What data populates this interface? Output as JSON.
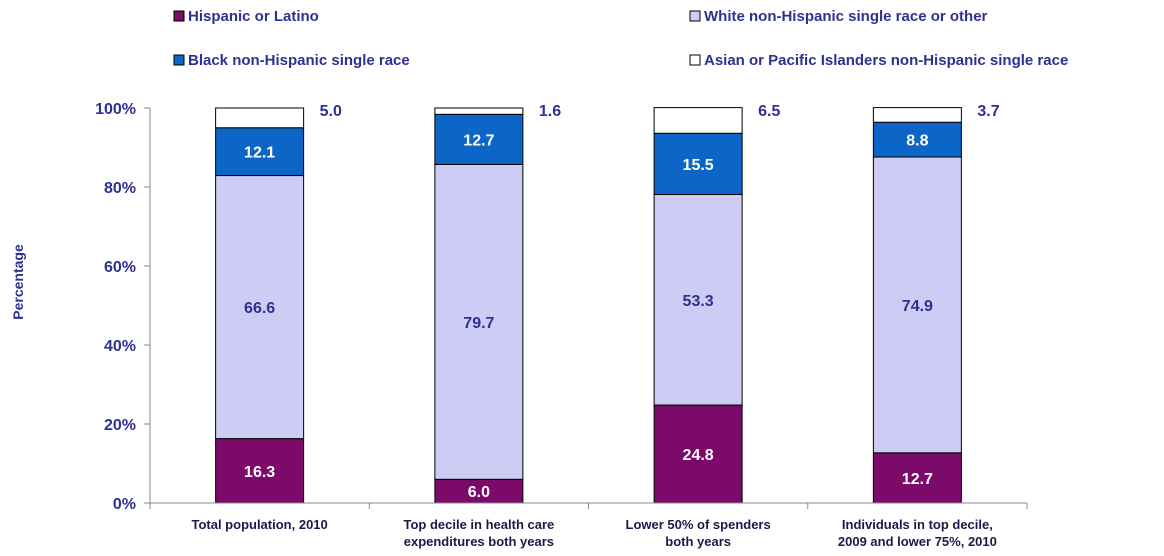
{
  "chart_data": {
    "type": "bar",
    "stacked": true,
    "categories": [
      [
        "Total population, 2010"
      ],
      [
        "Top decile in health care",
        "expenditures both years"
      ],
      [
        "Lower 50% of spenders",
        "both years"
      ],
      [
        "Individuals in top decile,",
        "2009 and lower 75%, 2010"
      ]
    ],
    "series": [
      {
        "name": "Hispanic or Latino",
        "color": "#7b0a6b",
        "values": [
          16.3,
          6.0,
          24.8,
          12.7
        ]
      },
      {
        "name": "White non-Hispanic single race or other",
        "color": "#ccccf5",
        "values": [
          66.6,
          79.7,
          53.3,
          74.9
        ]
      },
      {
        "name": "Black non-Hispanic single race",
        "color": "#0b66c8",
        "values": [
          12.1,
          12.7,
          15.5,
          8.8
        ]
      },
      {
        "name": "Asian or Pacific Islanders non-Hispanic single race",
        "color": "#ffffff",
        "values": [
          5.0,
          1.6,
          6.5,
          3.7
        ]
      }
    ],
    "ylabel": "Percentage",
    "ylim": [
      0,
      100
    ],
    "yticks": [
      "0%",
      "20%",
      "40%",
      "60%",
      "80%",
      "100%"
    ],
    "legend_position": "top",
    "grid": false
  }
}
